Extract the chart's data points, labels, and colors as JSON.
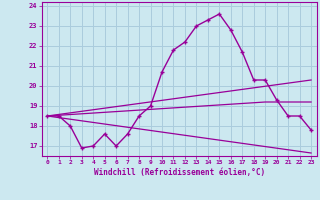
{
  "background_color": "#cce8f0",
  "grid_color": "#aaccdd",
  "line_color": "#990099",
  "marker_color": "#990099",
  "xlabel": "Windchill (Refroidissement éolien,°C)",
  "xlim": [
    -0.5,
    23.5
  ],
  "ylim": [
    16.5,
    24.2
  ],
  "yticks": [
    17,
    18,
    19,
    20,
    21,
    22,
    23,
    24
  ],
  "xticks": [
    0,
    1,
    2,
    3,
    4,
    5,
    6,
    7,
    8,
    9,
    10,
    11,
    12,
    13,
    14,
    15,
    16,
    17,
    18,
    19,
    20,
    21,
    22,
    23
  ],
  "line1_x": [
    0,
    1,
    2,
    3,
    4,
    5,
    6,
    7,
    8,
    9,
    10,
    11,
    12,
    13,
    14,
    15,
    16,
    17,
    18,
    19,
    20,
    21,
    22,
    23
  ],
  "line1_y": [
    18.5,
    18.5,
    18.0,
    16.9,
    17.0,
    17.6,
    17.0,
    17.6,
    18.5,
    19.0,
    20.7,
    21.8,
    22.2,
    23.0,
    23.3,
    23.6,
    22.8,
    21.7,
    20.3,
    20.3,
    19.3,
    18.5,
    18.5,
    17.8
  ],
  "line2_x": [
    0,
    23
  ],
  "line2_y": [
    18.5,
    20.3
  ],
  "line3_x": [
    0,
    23
  ],
  "line3_y": [
    18.5,
    16.65
  ],
  "line4_x": [
    0,
    19,
    23
  ],
  "line4_y": [
    18.5,
    19.2,
    19.2
  ]
}
